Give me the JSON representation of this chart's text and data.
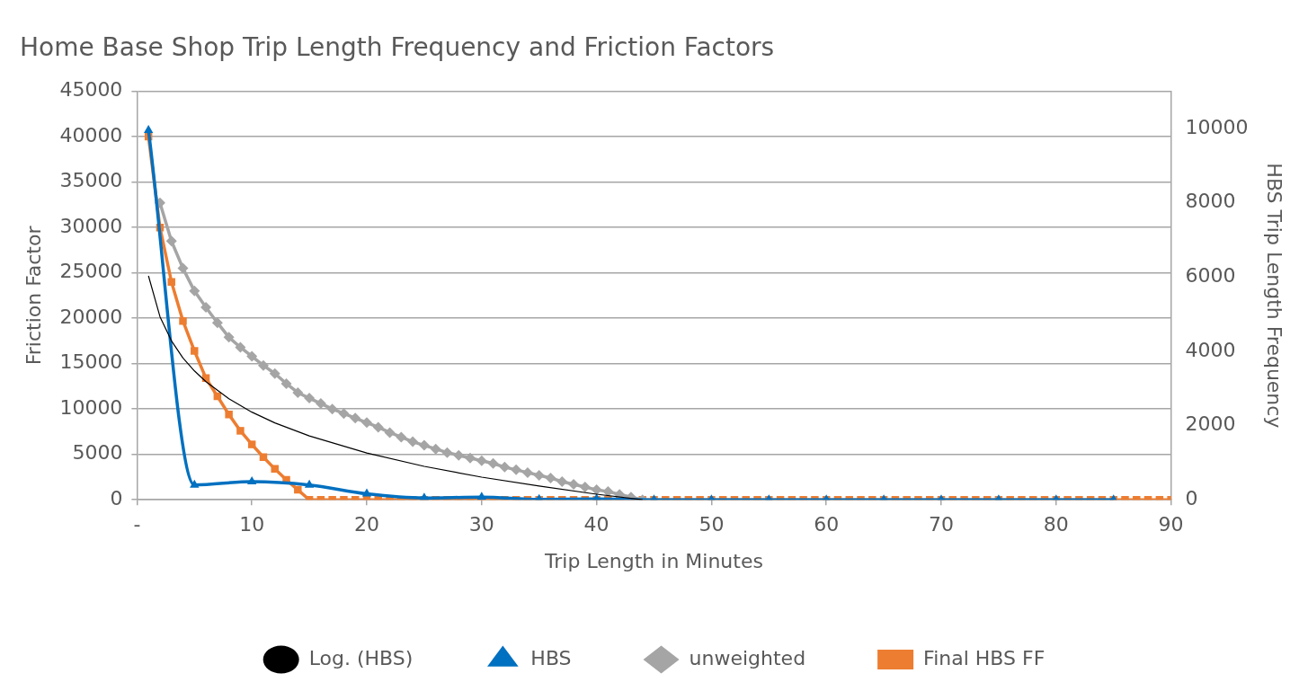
{
  "chart_data": {
    "type": "line",
    "title": "Home Base Shop Trip Length Frequency and Friction Factors",
    "xlabel": "Trip Length in Minutes",
    "ylabel": "Friction Factor",
    "y2label": "HBS Trip Length Frequency",
    "xlim": [
      0,
      90
    ],
    "xticks": [
      {
        "value": 0,
        "label": "-"
      },
      10,
      20,
      30,
      40,
      50,
      60,
      70,
      80,
      90
    ],
    "ylim": [
      0,
      45000
    ],
    "yticks": [
      0,
      5000,
      10000,
      15000,
      20000,
      25000,
      30000,
      35000,
      40000,
      45000
    ],
    "y2lim": [
      0,
      11000
    ],
    "y2ticks": [
      0,
      2000,
      4000,
      6000,
      8000,
      10000
    ],
    "grid": "y",
    "legend": "bottom",
    "series": [
      {
        "name": "Final HBS FF",
        "color": "#ed7d31",
        "marker": "square",
        "x": [
          1,
          2,
          3,
          4,
          5,
          6,
          7,
          8,
          9,
          10,
          11,
          12,
          13,
          14,
          15,
          16,
          17,
          18,
          19,
          20,
          21,
          22,
          23,
          24,
          25,
          26,
          27,
          28,
          29,
          30,
          31,
          32,
          33,
          34,
          35,
          36,
          37,
          38,
          39,
          40,
          41,
          42,
          43,
          44,
          45,
          46,
          47,
          48,
          49,
          50,
          51,
          52,
          53,
          54,
          55,
          56,
          57,
          58,
          59,
          60,
          61,
          62,
          63,
          64,
          65,
          66,
          67,
          68,
          69,
          70,
          71,
          72,
          73,
          74,
          75,
          76,
          77,
          78,
          79,
          80,
          81,
          82,
          83,
          84,
          85,
          86,
          87,
          88,
          89,
          90
        ],
        "values": [
          40000,
          30000,
          24000,
          19700,
          16400,
          13400,
          11400,
          9400,
          7600,
          6100,
          4700,
          3400,
          2200,
          1100,
          0,
          0,
          0,
          0,
          0,
          0,
          0,
          0,
          0,
          0,
          0,
          0,
          0,
          0,
          0,
          0,
          0,
          0,
          0,
          0,
          0,
          0,
          0,
          0,
          0,
          0,
          0,
          0,
          0,
          0,
          0,
          0,
          0,
          0,
          0,
          0,
          0,
          0,
          0,
          0,
          0,
          0,
          0,
          0,
          0,
          0,
          0,
          0,
          0,
          0,
          0,
          0,
          0,
          0,
          0,
          0,
          0,
          0,
          0,
          0,
          0,
          0,
          0,
          0,
          0,
          0,
          0,
          0,
          0,
          0,
          0,
          0,
          0,
          0,
          0,
          0
        ]
      },
      {
        "name": "unweighted",
        "color": "#a5a5a5",
        "marker": "diamond",
        "x": [
          2,
          3,
          4,
          5,
          6,
          7,
          8,
          9,
          10,
          11,
          12,
          13,
          14,
          15,
          16,
          17,
          18,
          19,
          20,
          21,
          22,
          23,
          24,
          25,
          26,
          27,
          28,
          29,
          30,
          31,
          32,
          33,
          34,
          35,
          36,
          37,
          38,
          39,
          40,
          41,
          42,
          43,
          44
        ],
        "values": [
          32700,
          28500,
          25500,
          23000,
          21200,
          19500,
          17900,
          16800,
          15800,
          14800,
          13900,
          12800,
          11800,
          11200,
          10600,
          10000,
          9500,
          9000,
          8500,
          8000,
          7400,
          6900,
          6400,
          6000,
          5600,
          5200,
          4900,
          4600,
          4300,
          4000,
          3600,
          3300,
          3000,
          2700,
          2400,
          2000,
          1700,
          1400,
          1100,
          900,
          600,
          300,
          0
        ]
      },
      {
        "name": "HBS",
        "color": "#0070c0",
        "marker": "triangle",
        "axis": "y2",
        "x": [
          1,
          5,
          10,
          15,
          20,
          25,
          30,
          35,
          40,
          45,
          50,
          55,
          60,
          65,
          70,
          75,
          80,
          85
        ],
        "values": [
          9950,
          400,
          490,
          400,
          160,
          50,
          70,
          10,
          20,
          0,
          0,
          0,
          0,
          0,
          0,
          0,
          0,
          0
        ]
      },
      {
        "name": "Log. (HBS)",
        "color": "#000000",
        "marker": "none",
        "axis": "y2",
        "x": [
          1,
          2,
          3,
          4,
          5,
          6,
          8,
          10,
          12,
          15,
          20,
          25,
          30,
          35,
          40,
          44
        ],
        "values": [
          6030,
          4930,
          4280,
          3820,
          3470,
          3180,
          2720,
          2360,
          2070,
          1720,
          1260,
          900,
          610,
          370,
          150,
          0
        ]
      }
    ]
  }
}
